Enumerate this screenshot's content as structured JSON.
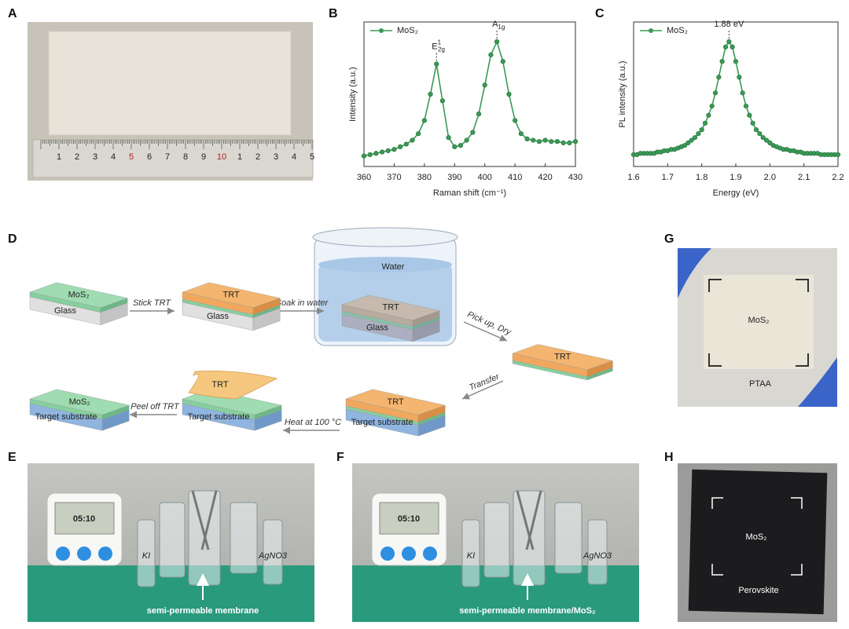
{
  "panel_letters": [
    "A",
    "B",
    "C",
    "D",
    "E",
    "F",
    "G",
    "H"
  ],
  "chart_data": [
    {
      "type": "line",
      "xlabel": "Raman shift (cm⁻¹)",
      "ylabel": "Intensity (a.u.)",
      "x": [
        360,
        362,
        364,
        366,
        368,
        370,
        372,
        374,
        376,
        378,
        380,
        382,
        384,
        386,
        388,
        390,
        392,
        394,
        396,
        398,
        400,
        402,
        404,
        406,
        408,
        410,
        412,
        414,
        416,
        418,
        420,
        422,
        424,
        426,
        428,
        430
      ],
      "series": [
        {
          "name": "MoS₂",
          "color": "#3a9a55",
          "values": [
            0.08,
            0.09,
            0.1,
            0.11,
            0.12,
            0.13,
            0.15,
            0.17,
            0.2,
            0.25,
            0.35,
            0.55,
            0.78,
            0.5,
            0.22,
            0.15,
            0.16,
            0.2,
            0.26,
            0.4,
            0.62,
            0.85,
            0.95,
            0.8,
            0.55,
            0.35,
            0.25,
            0.21,
            0.2,
            0.19,
            0.2,
            0.19,
            0.19,
            0.18,
            0.18,
            0.19
          ]
        }
      ],
      "xlim": [
        360,
        430
      ],
      "xticks": [
        360,
        370,
        380,
        390,
        400,
        410,
        420,
        430
      ],
      "ylim": [
        0,
        1.1
      ],
      "annotations": [
        {
          "base": "E",
          "sup": "1",
          "sub": "2g",
          "x": 384
        },
        {
          "base": "A",
          "sub": "1g",
          "x": 404
        }
      ]
    },
    {
      "type": "line",
      "xlabel": "Energy (eV)",
      "ylabel": "PL intensity (a.u.)",
      "x": [
        1.6,
        1.61,
        1.62,
        1.63,
        1.64,
        1.65,
        1.66,
        1.67,
        1.68,
        1.69,
        1.7,
        1.71,
        1.72,
        1.73,
        1.74,
        1.75,
        1.76,
        1.77,
        1.78,
        1.79,
        1.8,
        1.81,
        1.82,
        1.83,
        1.84,
        1.85,
        1.86,
        1.87,
        1.88,
        1.89,
        1.9,
        1.91,
        1.92,
        1.93,
        1.94,
        1.95,
        1.96,
        1.97,
        1.98,
        1.99,
        2.0,
        2.01,
        2.02,
        2.03,
        2.04,
        2.05,
        2.06,
        2.07,
        2.08,
        2.09,
        2.1,
        2.11,
        2.12,
        2.13,
        2.14,
        2.15,
        2.16,
        2.17,
        2.18,
        2.19,
        2.2
      ],
      "series": [
        {
          "name": "MoS₂",
          "color": "#3a9a55",
          "values": [
            0.09,
            0.09,
            0.1,
            0.1,
            0.1,
            0.1,
            0.1,
            0.11,
            0.11,
            0.12,
            0.12,
            0.13,
            0.13,
            0.14,
            0.15,
            0.16,
            0.18,
            0.2,
            0.22,
            0.25,
            0.28,
            0.33,
            0.39,
            0.46,
            0.56,
            0.68,
            0.8,
            0.91,
            0.95,
            0.91,
            0.8,
            0.68,
            0.56,
            0.46,
            0.39,
            0.33,
            0.28,
            0.25,
            0.22,
            0.2,
            0.18,
            0.16,
            0.15,
            0.14,
            0.13,
            0.13,
            0.12,
            0.12,
            0.11,
            0.11,
            0.1,
            0.1,
            0.1,
            0.1,
            0.1,
            0.09,
            0.09,
            0.09,
            0.09,
            0.09,
            0.09
          ]
        }
      ],
      "xlim": [
        1.6,
        2.2
      ],
      "xticks": [
        1.6,
        1.7,
        1.8,
        1.9,
        {
          "value": 2,
          "label": "2.0"
        },
        2.1,
        2.2
      ],
      "ylim": [
        0,
        1.1
      ],
      "annotations": [
        {
          "text": "1.88 eV",
          "x": 1.88
        }
      ]
    }
  ],
  "diagram": {
    "labels": [
      "MoS₂",
      "Glass",
      "Stick TRT",
      "TRT",
      "Glass",
      "Soak in water",
      "Water",
      "TRT",
      "Glass",
      "Pick up, Dry",
      "TRT",
      "Transfer",
      "TRT",
      "Target substrate",
      "Heat at 100 °C",
      "TRT",
      "Target substrate",
      "Peel off TRT",
      "MoS₂",
      "Target substrate"
    ]
  },
  "photos": {
    "A": {
      "ruler": [
        "1",
        "2",
        "3",
        "4",
        "5",
        "6",
        "7",
        "8",
        "9",
        "10",
        "1",
        "2",
        "3",
        "4",
        "5"
      ]
    },
    "E": {
      "timer": "05:10",
      "vials": [
        "KI",
        "AgNO3"
      ],
      "caption": "semi-permeable membrane"
    },
    "F": {
      "timer": "05:10",
      "vials": [
        "KI",
        "AgNO3"
      ],
      "caption": "semi-permeable membrane/MoS₂"
    },
    "G": {
      "labels": [
        "MoS₂",
        "PTAA"
      ]
    },
    "H": {
      "labels": [
        "MoS₂",
        "Perovskite"
      ]
    }
  }
}
